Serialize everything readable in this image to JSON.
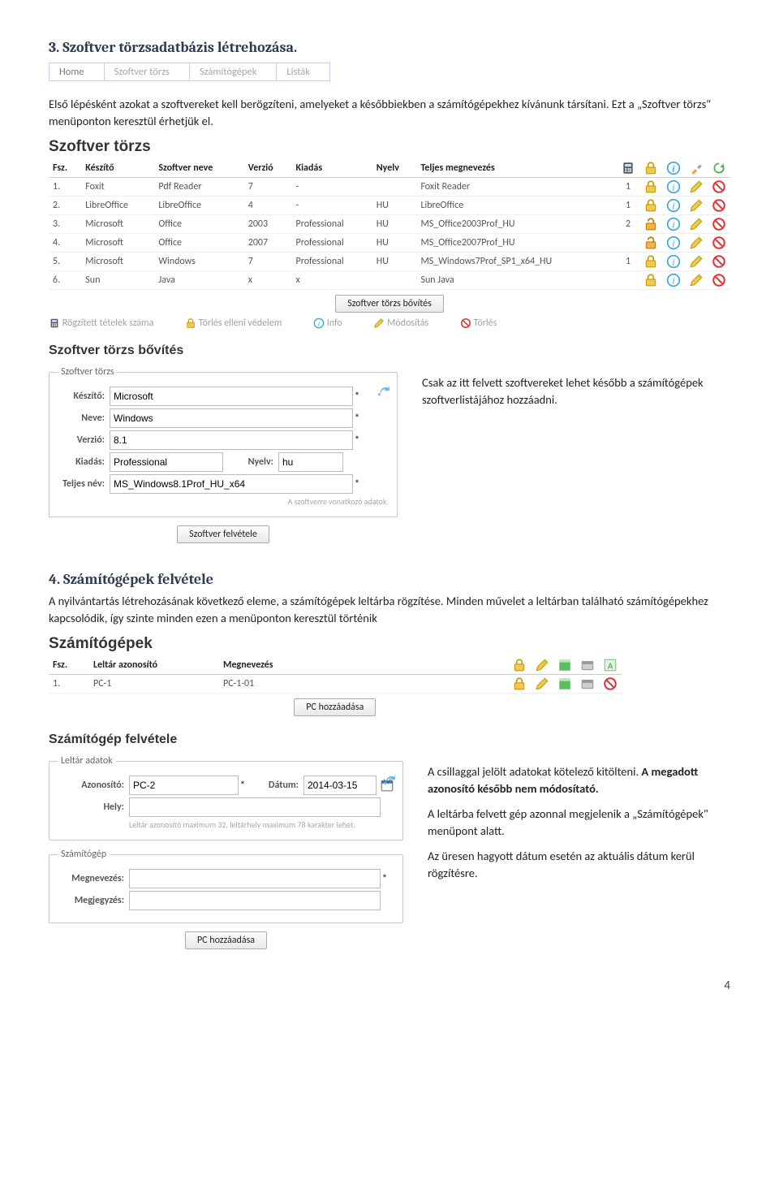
{
  "section3": {
    "heading": "3.   Szoftver törzsadatbázis létrehozása.",
    "nav": [
      "Home",
      "Szoftver törzs",
      "Számítógépek",
      "Listák"
    ],
    "p1": "Első lépésként azokat a szoftvereket kell berögzíteni, amelyeket a későbbiekben a számítógépekhez kívánunk társítani. Ezt a „Szoftver törzs\" menüponton keresztül érhetjük el.",
    "tableTitle": "Szoftver törzs",
    "columns": [
      "Fsz.",
      "Készítő",
      "Szoftver neve",
      "Verzió",
      "Kiadás",
      "Nyelv",
      "Teljes megnevezés"
    ],
    "rows": [
      {
        "n": "1.",
        "mk": "Foxit",
        "name": "Pdf Reader",
        "ver": "7",
        "ed": "-",
        "lang": "",
        "full": "Foxit Reader",
        "cnt": "1",
        "lock": true
      },
      {
        "n": "2.",
        "mk": "LibreOffice",
        "name": "LibreOffice",
        "ver": "4",
        "ed": "-",
        "lang": "HU",
        "full": "LibreOffice",
        "cnt": "1",
        "lock": true
      },
      {
        "n": "3.",
        "mk": "Microsoft",
        "name": "Office",
        "ver": "2003",
        "ed": "Professional",
        "lang": "HU",
        "full": "MS_Office2003Prof_HU",
        "cnt": "2",
        "lock": false
      },
      {
        "n": "4.",
        "mk": "Microsoft",
        "name": "Office",
        "ver": "2007",
        "ed": "Professional",
        "lang": "HU",
        "full": "MS_Office2007Prof_HU",
        "cnt": "",
        "lock": false
      },
      {
        "n": "5.",
        "mk": "Microsoft",
        "name": "Windows",
        "ver": "7",
        "ed": "Professional",
        "lang": "HU",
        "full": "MS_Windows7Prof_SP1_x64_HU",
        "cnt": "1",
        "lock": true
      },
      {
        "n": "6.",
        "mk": "Sun",
        "name": "Java",
        "ver": "x",
        "ed": "x",
        "lang": "",
        "full": "Sun Java",
        "cnt": "",
        "lock": true
      }
    ],
    "addBtn": "Szoftver törzs bővítés",
    "legend": {
      "count": "Rögzített tételek száma",
      "lock": "Törlés elleni védelem",
      "info": "Info",
      "edit": "Módosítás",
      "del": "Törlés"
    },
    "expandTitle": "Szoftver törzs bővítés",
    "form": {
      "legend": "Szoftver törzs",
      "maker": {
        "label": "Készítő:",
        "value": "Microsoft"
      },
      "name": {
        "label": "Neve:",
        "value": "Windows"
      },
      "ver": {
        "label": "Verzió:",
        "value": "8.1"
      },
      "ed": {
        "label": "Kiadás:",
        "value": "Professional"
      },
      "lang": {
        "label": "Nyelv:",
        "value": "hu"
      },
      "full": {
        "label": "Teljes név:",
        "value": "MS_Windows8.1Prof_HU_x64"
      },
      "hint": "A szoftverre vonatkozó adatok.",
      "addBtn": "Szoftver felvétele"
    },
    "rightNote": "Csak az itt felvett szoftvereket lehet később a számítógépek szoftverlistájához hozzáadni."
  },
  "section4": {
    "heading": "4.   Számítógépek felvétele",
    "p1": "A nyilvántartás létrehozásának következő eleme, a számítógépek leltárba rögzítése. Minden művelet a leltárban található számítógépekhez kapcsolódik,  így szinte minden ezen a menüponton keresztül történik",
    "tableTitle": "Számítógépek",
    "columns": [
      "Fsz.",
      "Leltár azonosító",
      "Megnevezés"
    ],
    "rows": [
      {
        "n": "1.",
        "id": "PC-1",
        "name": "PC-1-01"
      }
    ],
    "addBtn": "PC hozzáadása",
    "addTitle": "Számítógép felvétele",
    "formInv": {
      "legend": "Leltár adatok",
      "id": {
        "label": "Azonosító:",
        "value": "PC-2"
      },
      "date": {
        "label": "Dátum:",
        "value": "2014-03-15"
      },
      "loc": {
        "label": "Hely:",
        "value": ""
      },
      "hint": "Leltár azonosító maximum 32, leltárhely maximum 78 karakter lehet."
    },
    "formPc": {
      "legend": "Számítógép",
      "name": {
        "label": "Megnevezés:",
        "value": ""
      },
      "note": {
        "label": "Megjegyzés:",
        "value": ""
      }
    },
    "addBtn2": "PC hozzáadása",
    "rightNotes": {
      "a": "  A csillaggal jelölt adatokat kötelező kitölteni.  ",
      "b": "A megadott azonosító később nem módosítató.",
      "c": "A leltárba felvett gép azonnal megjelenik a „Számítógépek\" menüpont alatt.",
      "d": "Az üresen hagyott dátum esetén az aktuális dátum kerül rögzítésre."
    }
  },
  "pagenum": "4"
}
